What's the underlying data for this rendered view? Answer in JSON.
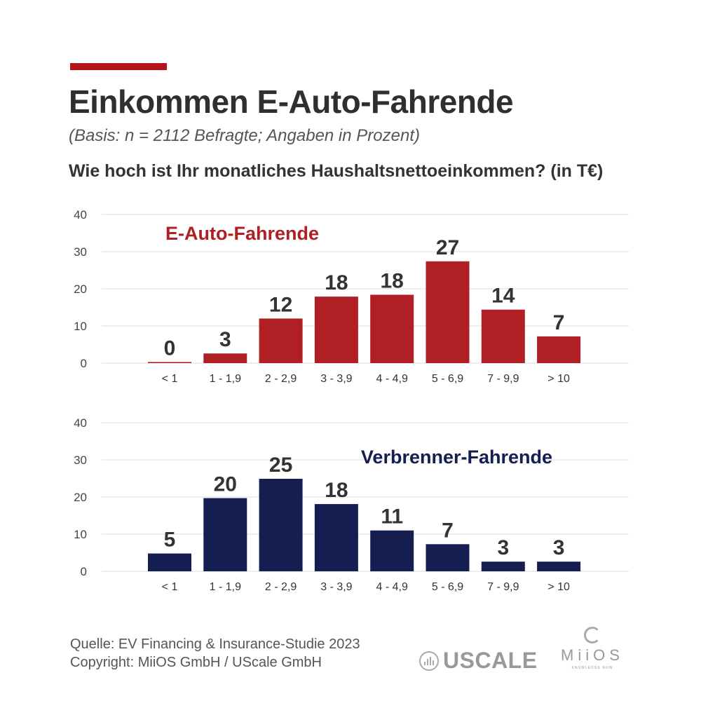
{
  "header": {
    "title": "Einkommen E-Auto-Fahrende",
    "subtitle": "(Basis: n = 2112 Befragte; Angaben in Prozent)",
    "question": "Wie hoch ist Ihr monatliches Haushaltsnettoeinkommen? (in T€)"
  },
  "colors": {
    "accent": "#b3151b",
    "ev": "#b01f24",
    "ice": "#141e50",
    "grid": "#dddddd"
  },
  "chart_data": [
    {
      "type": "bar",
      "title": "E-Auto-Fahrende",
      "color": "#b01f24",
      "categories": [
        "< 1",
        "1 - 1,9",
        "2 - 2,9",
        "3 - 3,9",
        "4 - 4,9",
        "5 - 6,9",
        "7 - 9,9",
        "> 10"
      ],
      "values": [
        0,
        3,
        12,
        18,
        18,
        27,
        14,
        7
      ],
      "bar_values": [
        0.3,
        2.6,
        12.0,
        17.9,
        18.4,
        27.4,
        14.4,
        7.2
      ],
      "yticks": [
        0,
        10,
        20,
        30,
        40
      ],
      "ylim": [
        0,
        40
      ],
      "grid": true,
      "legend_position": "top-left"
    },
    {
      "type": "bar",
      "title": "Verbrenner-Fahrende",
      "color": "#141e50",
      "categories": [
        "< 1",
        "1 - 1,9",
        "2 - 2,9",
        "3 - 3,9",
        "4 - 4,9",
        "5 - 6,9",
        "7 - 9,9",
        "> 10"
      ],
      "values": [
        5,
        20,
        25,
        18,
        11,
        7,
        3,
        3
      ],
      "bar_values": [
        4.8,
        19.7,
        24.9,
        18.1,
        11.0,
        7.3,
        2.6,
        2.6
      ],
      "yticks": [
        0,
        10,
        20,
        30,
        40
      ],
      "ylim": [
        0,
        40
      ],
      "grid": true,
      "legend_position": "top-right"
    }
  ],
  "footer": {
    "source": "Quelle: EV Financing & Insurance-Studie 2023",
    "copyright": "Copyright: MiiOS GmbH / UScale GmbH"
  },
  "logos": {
    "uscale": "USCALE",
    "miios": "MiiOS",
    "miios_tagline": "KNOWLEDGE NOW"
  }
}
